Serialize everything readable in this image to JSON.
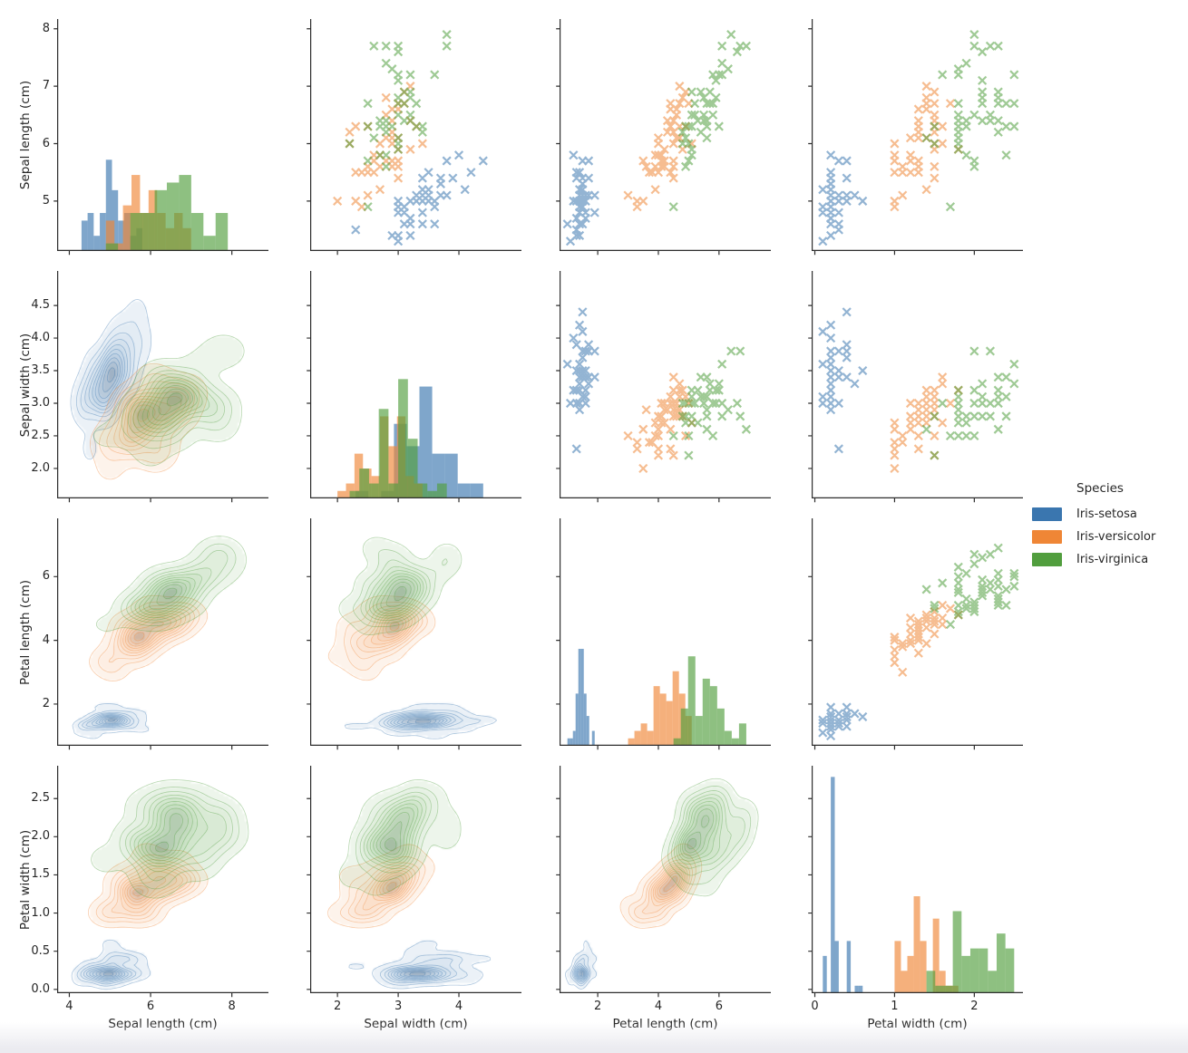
{
  "figure": {
    "background": "#ffffff"
  },
  "chart_data": {
    "type": "pairplot",
    "grid": {
      "diagonal": "histogram",
      "upper_triangle": "scatter",
      "lower_triangle": "kde_contour"
    },
    "style": {
      "marker": "x",
      "scatter_alpha": 0.55,
      "hist_alpha": 0.65,
      "hist_count_max": 30.5,
      "kde_levels": 10
    },
    "variables": [
      "sepal_length",
      "sepal_width",
      "petal_length",
      "petal_width"
    ],
    "axes": {
      "sepal_length": {
        "label": "Sepal length (cm)",
        "x_ticks": [
          4,
          6,
          8
        ],
        "x_tick_labels": [
          "4",
          "6",
          "8"
        ],
        "y_ticks": [
          5,
          6,
          7,
          8
        ],
        "y_tick_labels": [
          "5",
          "6",
          "7",
          "8"
        ],
        "x_range": [
          3.7,
          8.9
        ],
        "y_range": [
          4.13,
          8.17
        ]
      },
      "sepal_width": {
        "label": "Sepal width (cm)",
        "x_ticks": [
          2,
          3,
          4
        ],
        "x_tick_labels": [
          "2",
          "3",
          "4"
        ],
        "y_ticks": [
          2.0,
          2.5,
          3.0,
          3.5,
          4.0,
          4.5
        ],
        "y_tick_labels": [
          "2.0",
          "2.5",
          "3.0",
          "3.5",
          "4.0",
          "4.5"
        ],
        "x_range": [
          1.55,
          5.03
        ],
        "y_range": [
          1.54,
          5.03
        ]
      },
      "petal_length": {
        "label": "Petal length (cm)",
        "x_ticks": [
          2,
          4,
          6
        ],
        "x_tick_labels": [
          "2",
          "4",
          "6"
        ],
        "y_ticks": [
          2,
          4,
          6
        ],
        "y_tick_labels": [
          "2",
          "4",
          "6"
        ],
        "x_range": [
          0.74,
          7.71
        ],
        "y_range": [
          0.69,
          7.83
        ]
      },
      "petal_width": {
        "label": "Petal width (cm)",
        "x_ticks": [
          0,
          1,
          2
        ],
        "x_tick_labels": [
          "0",
          "1",
          "2"
        ],
        "y_ticks": [
          0.0,
          0.5,
          1.0,
          1.5,
          2.0,
          2.5
        ],
        "y_tick_labels": [
          "0.0",
          "0.5",
          "1.0",
          "1.5",
          "2.0",
          "2.5"
        ],
        "x_range": [
          -0.04,
          2.61
        ],
        "y_range": [
          -0.05,
          2.93
        ]
      }
    },
    "legend": {
      "title": "Species",
      "entries": [
        {
          "label": "Iris-setosa",
          "color": "#3a76af"
        },
        {
          "label": "Iris-versicolor",
          "color": "#ef8636"
        },
        {
          "label": "Iris-virginica",
          "color": "#519e3e"
        }
      ]
    },
    "series": [
      {
        "name": "Iris-setosa",
        "color": "#3a76af",
        "data": {
          "sepal_length": [
            5.1,
            4.9,
            4.7,
            4.6,
            5.0,
            5.4,
            4.6,
            5.0,
            4.4,
            4.9,
            5.4,
            4.8,
            4.8,
            4.3,
            5.8,
            5.7,
            5.4,
            5.1,
            5.7,
            5.1,
            5.4,
            5.1,
            4.6,
            5.1,
            4.8,
            5.0,
            5.0,
            5.2,
            5.2,
            4.7,
            4.8,
            5.4,
            5.2,
            5.5,
            4.9,
            5.0,
            5.5,
            4.9,
            4.4,
            5.1,
            5.0,
            4.5,
            4.4,
            5.0,
            5.1,
            4.8,
            5.1,
            4.6,
            5.3,
            5.0
          ],
          "sepal_width": [
            3.5,
            3.0,
            3.2,
            3.1,
            3.6,
            3.9,
            3.4,
            3.4,
            2.9,
            3.1,
            3.7,
            3.4,
            3.0,
            3.0,
            4.0,
            4.4,
            3.9,
            3.5,
            3.8,
            3.8,
            3.4,
            3.7,
            3.6,
            3.3,
            3.4,
            3.0,
            3.4,
            3.5,
            3.4,
            3.2,
            3.1,
            3.4,
            4.1,
            4.2,
            3.1,
            3.2,
            3.5,
            3.6,
            3.0,
            3.4,
            3.5,
            2.3,
            3.2,
            3.5,
            3.8,
            3.0,
            3.8,
            3.2,
            3.7,
            3.3
          ],
          "petal_length": [
            1.4,
            1.4,
            1.3,
            1.5,
            1.4,
            1.7,
            1.4,
            1.5,
            1.4,
            1.5,
            1.5,
            1.6,
            1.4,
            1.1,
            1.2,
            1.5,
            1.3,
            1.4,
            1.7,
            1.5,
            1.7,
            1.5,
            1.0,
            1.7,
            1.9,
            1.6,
            1.6,
            1.5,
            1.4,
            1.6,
            1.6,
            1.5,
            1.5,
            1.4,
            1.5,
            1.2,
            1.3,
            1.4,
            1.3,
            1.5,
            1.3,
            1.3,
            1.3,
            1.6,
            1.9,
            1.4,
            1.6,
            1.4,
            1.5,
            1.4
          ],
          "petal_width": [
            0.2,
            0.2,
            0.2,
            0.2,
            0.2,
            0.4,
            0.3,
            0.2,
            0.2,
            0.1,
            0.2,
            0.2,
            0.1,
            0.1,
            0.2,
            0.4,
            0.4,
            0.3,
            0.3,
            0.3,
            0.2,
            0.4,
            0.2,
            0.5,
            0.2,
            0.2,
            0.4,
            0.2,
            0.2,
            0.2,
            0.2,
            0.4,
            0.1,
            0.2,
            0.2,
            0.2,
            0.2,
            0.1,
            0.2,
            0.2,
            0.3,
            0.3,
            0.2,
            0.6,
            0.4,
            0.3,
            0.2,
            0.2,
            0.2,
            0.2
          ]
        }
      },
      {
        "name": "Iris-versicolor",
        "color": "#ef8636",
        "data": {
          "sepal_length": [
            7.0,
            6.4,
            6.9,
            5.5,
            6.5,
            5.7,
            6.3,
            4.9,
            6.6,
            5.2,
            5.0,
            5.9,
            6.0,
            6.1,
            5.6,
            6.7,
            5.6,
            5.8,
            6.2,
            5.6,
            5.9,
            6.1,
            6.3,
            6.1,
            6.4,
            6.6,
            6.8,
            6.7,
            6.0,
            5.7,
            5.5,
            5.5,
            5.8,
            6.0,
            5.4,
            6.0,
            6.7,
            6.3,
            5.6,
            5.5,
            5.5,
            6.1,
            5.8,
            5.0,
            5.6,
            5.7,
            5.7,
            6.2,
            5.1,
            5.7
          ],
          "sepal_width": [
            3.2,
            3.2,
            3.1,
            2.3,
            2.8,
            2.8,
            3.3,
            2.4,
            2.9,
            2.7,
            2.0,
            3.0,
            2.2,
            2.9,
            2.9,
            3.1,
            3.0,
            2.7,
            2.2,
            2.5,
            3.2,
            2.8,
            2.5,
            2.8,
            2.9,
            3.0,
            2.8,
            3.0,
            2.9,
            2.6,
            2.4,
            2.4,
            2.7,
            2.7,
            3.0,
            3.4,
            3.1,
            2.3,
            3.0,
            2.5,
            2.6,
            3.0,
            2.6,
            2.3,
            2.7,
            3.0,
            2.9,
            2.9,
            2.5,
            2.8
          ],
          "petal_length": [
            4.7,
            4.5,
            4.9,
            4.0,
            4.6,
            4.5,
            4.7,
            3.3,
            4.6,
            3.9,
            3.5,
            4.2,
            4.0,
            4.7,
            3.6,
            4.4,
            4.5,
            4.1,
            4.5,
            3.9,
            4.8,
            4.0,
            4.9,
            4.7,
            4.3,
            4.4,
            4.8,
            5.0,
            4.5,
            3.5,
            3.8,
            3.7,
            3.9,
            5.1,
            4.5,
            4.5,
            4.7,
            4.4,
            4.1,
            4.0,
            4.4,
            4.6,
            4.0,
            3.3,
            4.2,
            4.2,
            4.2,
            4.3,
            3.0,
            4.1
          ],
          "petal_width": [
            1.4,
            1.5,
            1.5,
            1.3,
            1.5,
            1.3,
            1.6,
            1.0,
            1.3,
            1.4,
            1.0,
            1.5,
            1.0,
            1.4,
            1.3,
            1.4,
            1.5,
            1.0,
            1.5,
            1.1,
            1.8,
            1.3,
            1.5,
            1.2,
            1.3,
            1.4,
            1.4,
            1.7,
            1.5,
            1.0,
            1.1,
            1.0,
            1.2,
            1.6,
            1.5,
            1.6,
            1.5,
            1.3,
            1.3,
            1.3,
            1.2,
            1.4,
            1.2,
            1.0,
            1.3,
            1.2,
            1.3,
            1.3,
            1.1,
            1.3
          ]
        }
      },
      {
        "name": "Iris-virginica",
        "color": "#519e3e",
        "data": {
          "sepal_length": [
            6.3,
            5.8,
            7.1,
            6.3,
            6.5,
            7.6,
            4.9,
            7.3,
            6.7,
            7.2,
            6.5,
            6.4,
            6.8,
            5.7,
            5.8,
            6.4,
            6.5,
            7.7,
            7.7,
            6.0,
            6.9,
            5.6,
            7.7,
            6.3,
            6.7,
            7.2,
            6.2,
            6.1,
            6.4,
            7.2,
            7.4,
            7.9,
            6.4,
            6.3,
            6.1,
            7.7,
            6.3,
            6.4,
            6.0,
            6.9,
            6.7,
            6.9,
            5.8,
            6.8,
            6.7,
            6.7,
            6.3,
            6.5,
            6.2,
            5.9
          ],
          "sepal_width": [
            3.3,
            2.7,
            3.0,
            2.9,
            3.0,
            3.0,
            2.5,
            2.9,
            2.5,
            3.6,
            3.2,
            2.7,
            3.0,
            2.5,
            2.8,
            3.2,
            3.0,
            3.8,
            2.6,
            2.2,
            3.2,
            2.8,
            2.8,
            2.7,
            3.3,
            3.2,
            2.8,
            3.0,
            2.8,
            3.0,
            2.8,
            3.8,
            2.8,
            2.8,
            2.6,
            3.0,
            3.4,
            3.1,
            3.0,
            3.1,
            3.1,
            3.1,
            2.7,
            3.2,
            3.3,
            3.0,
            2.5,
            3.0,
            3.4,
            3.0
          ],
          "petal_length": [
            6.0,
            5.1,
            5.9,
            5.6,
            5.8,
            6.6,
            4.5,
            6.3,
            5.8,
            6.1,
            5.1,
            5.3,
            5.5,
            5.0,
            5.1,
            5.3,
            5.5,
            6.7,
            6.9,
            5.0,
            5.7,
            4.9,
            6.7,
            4.9,
            5.7,
            6.0,
            4.8,
            4.9,
            5.6,
            5.8,
            6.1,
            6.4,
            5.6,
            5.1,
            5.6,
            6.1,
            5.6,
            5.5,
            4.8,
            5.4,
            5.6,
            5.1,
            5.1,
            5.9,
            5.7,
            5.2,
            5.0,
            5.2,
            5.4,
            5.1
          ],
          "petal_width": [
            2.5,
            1.9,
            2.1,
            1.8,
            2.2,
            2.1,
            1.7,
            1.8,
            1.8,
            2.5,
            2.0,
            1.9,
            2.1,
            2.0,
            2.4,
            2.3,
            1.8,
            2.2,
            2.3,
            1.5,
            2.3,
            2.0,
            2.0,
            1.8,
            2.1,
            1.8,
            1.8,
            1.8,
            2.1,
            1.6,
            1.9,
            2.0,
            2.2,
            1.5,
            1.4,
            2.3,
            2.4,
            1.8,
            1.8,
            2.1,
            2.4,
            2.3,
            1.9,
            2.3,
            2.5,
            2.3,
            1.9,
            2.0,
            2.3,
            1.8
          ]
        }
      }
    ]
  }
}
